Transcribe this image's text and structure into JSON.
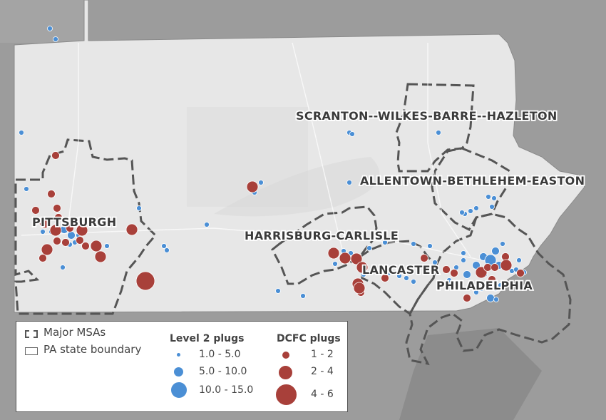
{
  "map": {
    "msa_labels": [
      "SCRANTON--WILKES-BARRE--HAZLETON",
      "ALLENTOWN-BETHLEHEM-EASTON",
      "PITTSBURGH",
      "HARRISBURG-CARLISLE",
      "LANCASTER",
      "PHILADELPHIA"
    ],
    "colors": {
      "background": "#9a9a9a",
      "state_fill": "#e8e8e8",
      "level2": "#4b8fd5",
      "dcfc": "#a8403a",
      "boundary": "#555555"
    }
  },
  "legend": {
    "msa": "Major MSAs",
    "state": "PA state boundary",
    "level2": {
      "title": "Level 2 plugs",
      "classes": [
        "1.0 - 5.0",
        "5.0 - 10.0",
        "10.0 - 15.0"
      ]
    },
    "dcfc": {
      "title": "DCFC plugs",
      "classes": [
        "1 - 2",
        "2 - 4",
        "4 - 6"
      ]
    }
  }
}
